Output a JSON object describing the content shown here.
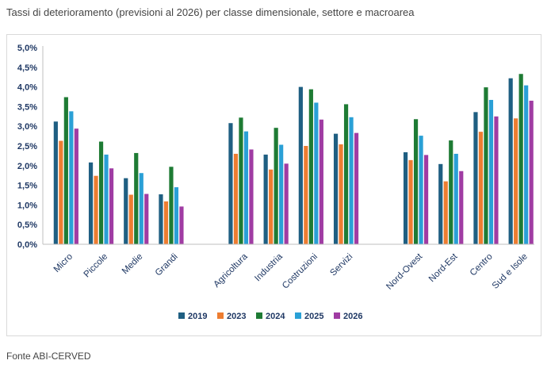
{
  "page_title": "Tassi di deterioramento (previsioni al 2026) per classe dimensionale, settore e macroarea",
  "source_note": "Fonte ABI-CERVED",
  "chart_data": {
    "type": "bar",
    "title": "",
    "xlabel": "",
    "ylabel": "",
    "ylim": [
      0,
      5
    ],
    "yticks": [
      "0,0%",
      "0,5%",
      "1,0%",
      "1,5%",
      "2,0%",
      "2,5%",
      "3,0%",
      "3,5%",
      "4,0%",
      "4,5%",
      "5,0%"
    ],
    "grid": false,
    "legend_position": "bottom",
    "groups": [
      [
        "Micro",
        "Piccole",
        "Medie",
        "Grandi"
      ],
      [
        "Agricoltura",
        "Industria",
        "Costruzioni",
        "Servizi"
      ],
      [
        "Nord-Ovest",
        "Nord-Est",
        "Centro",
        "Sud e Isole"
      ]
    ],
    "categories": [
      "Micro",
      "Piccole",
      "Medie",
      "Grandi",
      "Agricoltura",
      "Industria",
      "Costruzioni",
      "Servizi",
      "Nord-Ovest",
      "Nord-Est",
      "Centro",
      "Sud e Isole"
    ],
    "series": [
      {
        "name": "2019",
        "color": "#1f5f82",
        "values": [
          3.12,
          2.08,
          1.68,
          1.27,
          3.08,
          2.28,
          4.0,
          2.81,
          2.34,
          2.04,
          3.36,
          4.22
        ]
      },
      {
        "name": "2023",
        "color": "#ed7d31",
        "values": [
          2.63,
          1.74,
          1.26,
          1.09,
          2.3,
          1.9,
          2.5,
          2.54,
          2.14,
          1.6,
          2.86,
          3.2
        ]
      },
      {
        "name": "2024",
        "color": "#1e7b34",
        "values": [
          3.74,
          2.61,
          2.32,
          1.97,
          3.22,
          2.96,
          3.94,
          3.56,
          3.18,
          2.64,
          3.99,
          4.33
        ]
      },
      {
        "name": "2025",
        "color": "#2aa0d6",
        "values": [
          3.38,
          2.28,
          1.81,
          1.45,
          2.87,
          2.53,
          3.6,
          3.23,
          2.76,
          2.3,
          3.67,
          4.04
        ]
      },
      {
        "name": "2026",
        "color": "#a03ca3",
        "values": [
          2.94,
          1.93,
          1.28,
          0.96,
          2.41,
          2.05,
          3.17,
          2.83,
          2.27,
          1.86,
          3.25,
          3.65
        ]
      }
    ]
  }
}
